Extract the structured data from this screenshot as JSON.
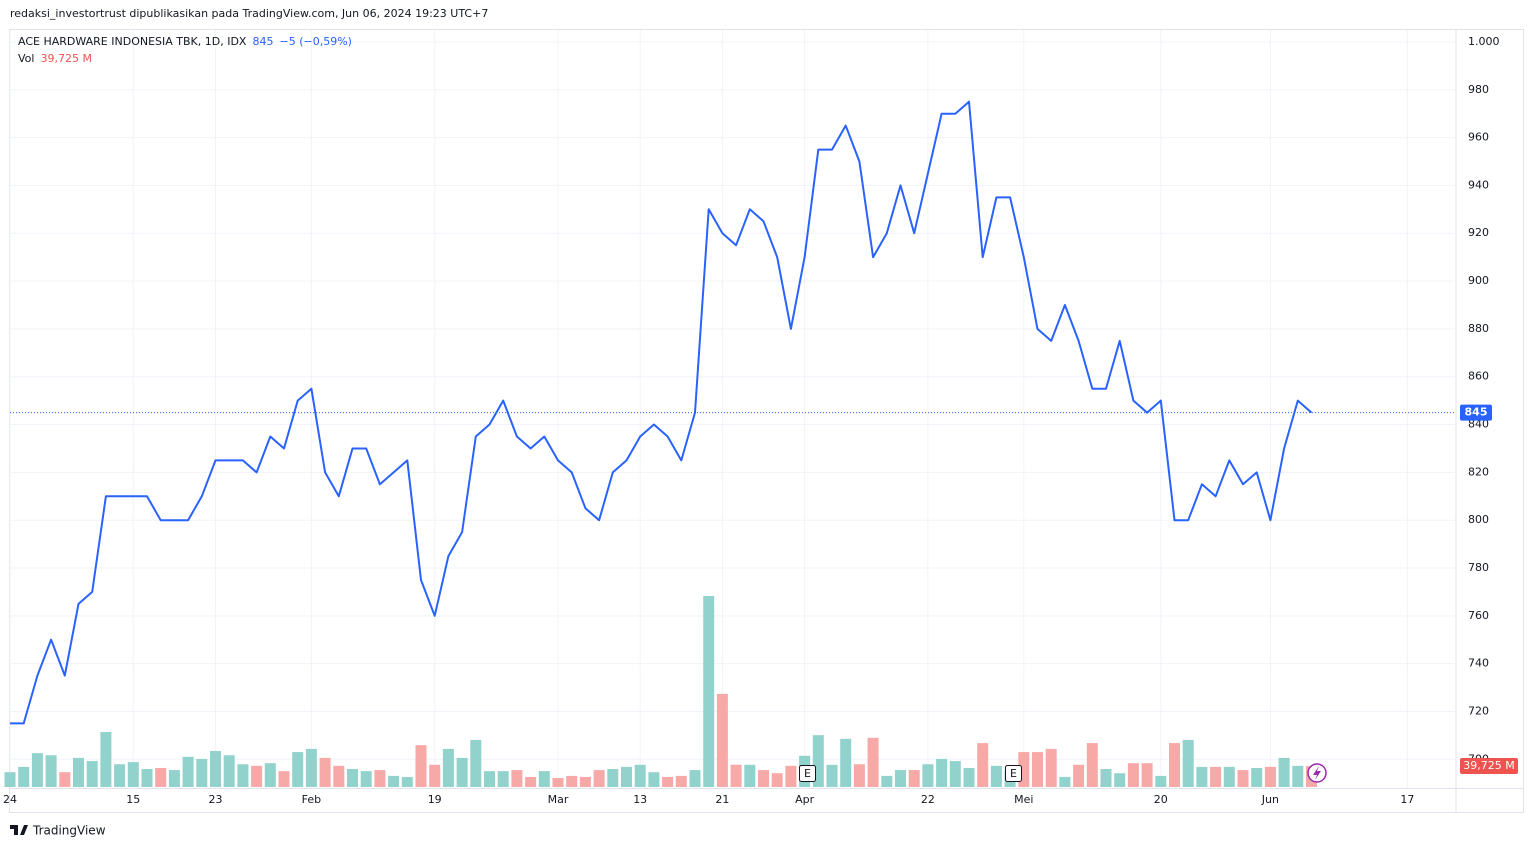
{
  "chart_data": {
    "type": "line",
    "published": "redaksi_investortrust dipublikasikan pada TradingView.com, Jun 06, 2024 19:23 UTC+7",
    "title": "ACE HARDWARE INDONESIA TBK, 1D, IDX",
    "change": "−5 (−0,59%)",
    "volume_title": "Vol",
    "footer": "TradingView",
    "earnings_markers": [
      "E",
      "E"
    ],
    "color": "#2962ff",
    "grid": true,
    "ylim": [
      688,
      1005
    ],
    "yticks": [
      700,
      720,
      740,
      760,
      780,
      800,
      820,
      840,
      860,
      880,
      900,
      920,
      940,
      960,
      980,
      {
        "value": 1000,
        "label": "1.000"
      }
    ],
    "categories": [
      "24",
      null,
      null,
      null,
      null,
      null,
      null,
      null,
      null,
      "15",
      null,
      null,
      null,
      null,
      null,
      "23",
      null,
      null,
      null,
      null,
      null,
      null,
      "Feb",
      null,
      null,
      null,
      null,
      null,
      null,
      null,
      null,
      "19",
      null,
      null,
      null,
      null,
      null,
      null,
      null,
      null,
      "Mar",
      null,
      null,
      null,
      null,
      null,
      "13",
      null,
      null,
      null,
      null,
      null,
      "21",
      null,
      null,
      null,
      null,
      null,
      "Apr",
      null,
      null,
      null,
      null,
      null,
      null,
      null,
      null,
      "22",
      null,
      null,
      null,
      null,
      null,
      null,
      "Mei",
      null,
      null,
      null,
      null,
      null,
      null,
      null,
      null,
      null,
      "20",
      null,
      null,
      null,
      null,
      null,
      null,
      null,
      "Jun",
      null,
      null,
      null,
      null,
      null,
      null,
      null,
      null,
      null,
      "17",
      null,
      null,
      null
    ],
    "values": [
      715,
      715,
      735,
      750,
      735,
      765,
      770,
      810,
      810,
      810,
      810,
      800,
      800,
      800,
      810,
      825,
      825,
      825,
      820,
      835,
      830,
      850,
      855,
      820,
      810,
      830,
      830,
      815,
      820,
      825,
      775,
      760,
      785,
      795,
      835,
      840,
      850,
      835,
      830,
      835,
      825,
      820,
      805,
      800,
      820,
      825,
      835,
      840,
      835,
      825,
      845,
      930,
      920,
      915,
      930,
      925,
      910,
      880,
      910,
      955,
      955,
      965,
      950,
      910,
      920,
      940,
      920,
      945,
      970,
      970,
      975,
      910,
      935,
      935,
      910,
      880,
      875,
      890,
      875,
      855,
      855,
      875,
      850,
      845,
      850,
      800,
      800,
      815,
      810,
      825,
      815,
      820,
      800,
      830,
      850,
      845,
      null,
      null,
      null,
      null,
      null,
      null,
      null,
      null,
      null,
      null
    ],
    "volume": {
      "up_color": "#92d2cc",
      "down_color": "#f7a9a7",
      "label_color": "#ef5350",
      "values": [
        28,
        38,
        64,
        60,
        28,
        55,
        49,
        104,
        43,
        47,
        34,
        36,
        32,
        57,
        53,
        68,
        60,
        43,
        40,
        45,
        30,
        66,
        72,
        55,
        40,
        34,
        30,
        32,
        21,
        19,
        79,
        42,
        72,
        55,
        89,
        30,
        30,
        32,
        19,
        30,
        17,
        21,
        19,
        32,
        34,
        38,
        42,
        28,
        19,
        21,
        32,
        361,
        176,
        42,
        42,
        32,
        26,
        40,
        59,
        98,
        42,
        91,
        43,
        93,
        21,
        32,
        32,
        43,
        53,
        49,
        36,
        83,
        40,
        32,
        66,
        66,
        72,
        19,
        42,
        83,
        34,
        26,
        45,
        45,
        21,
        83,
        89,
        38,
        38,
        38,
        32,
        36,
        38,
        55,
        40,
        39.725,
        null,
        null,
        null,
        null,
        null,
        null,
        null,
        null,
        null,
        null
      ],
      "value_labels": [
        null,
        null,
        null,
        null,
        null,
        null,
        null,
        null,
        null,
        null,
        null,
        null,
        null,
        null,
        null,
        null,
        null,
        null,
        null,
        null,
        null,
        null,
        null,
        null,
        null,
        null,
        null,
        null,
        null,
        null,
        null,
        null,
        null,
        null,
        null,
        null,
        null,
        null,
        null,
        null,
        null,
        null,
        null,
        null,
        null,
        null,
        null,
        null,
        null,
        null,
        null,
        null,
        null,
        null,
        null,
        null,
        null,
        null,
        null,
        null,
        null,
        null,
        null,
        null,
        null,
        null,
        null,
        null,
        null,
        null,
        null,
        null,
        null,
        null,
        null,
        null,
        null,
        null,
        null,
        null,
        null,
        null,
        null,
        null,
        null,
        null,
        null,
        null,
        null,
        null,
        null,
        null,
        null,
        null,
        null,
        "39,725 M",
        null,
        null,
        null,
        null,
        null,
        null,
        null,
        null,
        null,
        null
      ]
    }
  }
}
